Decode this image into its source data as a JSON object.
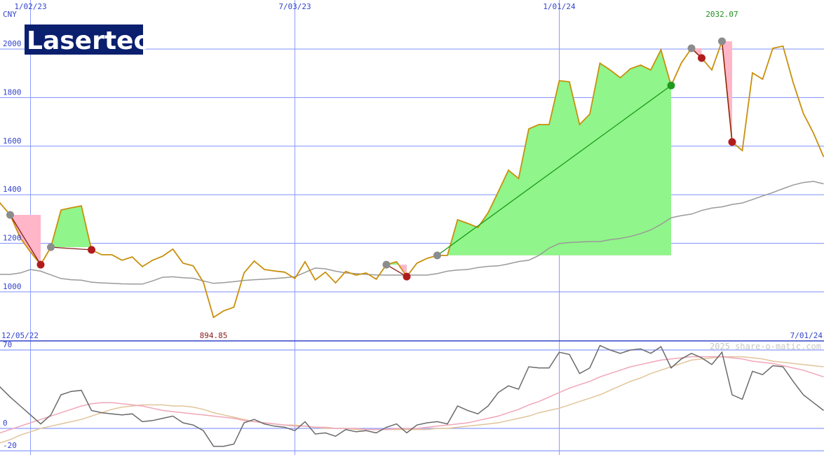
{
  "chart_data": [
    {
      "type": "line",
      "logo": "Lasertec",
      "currency": "CNY",
      "categories": [
        "12/05/22",
        null,
        null,
        null,
        "1/02/23",
        null,
        null,
        null,
        null,
        null,
        null,
        null,
        null,
        null,
        null,
        null,
        null,
        null,
        null,
        null,
        null,
        null,
        null,
        null,
        null,
        null,
        null,
        null,
        null,
        null,
        "7/03/23",
        null,
        null,
        null,
        null,
        null,
        null,
        null,
        null,
        null,
        null,
        null,
        null,
        null,
        null,
        null,
        null,
        null,
        null,
        null,
        null,
        null,
        null,
        null,
        null,
        null,
        "1/01/24",
        null,
        null,
        null,
        null,
        null,
        null,
        null,
        null,
        null,
        null,
        null,
        null,
        null,
        null,
        null,
        null,
        null,
        null,
        null,
        null,
        null,
        null,
        null,
        null,
        null,
        "7/01/24"
      ],
      "series": [
        {
          "color": "#c8900c",
          "values": [
            1410,
            1366,
            1317,
            1222,
            1164,
            1112,
            1184,
            1337,
            1346,
            1354,
            1173,
            1153,
            1153,
            1130,
            1144,
            1104,
            1130,
            1147,
            1176,
            1118,
            1107,
            1040,
            894.85,
            922,
            937,
            1078,
            1127,
            1092,
            1086,
            1081,
            1055,
            1124,
            1049,
            1081,
            1037,
            1084,
            1069,
            1078,
            1052,
            1112,
            1124,
            1063,
            1118,
            1138,
            1150,
            1150,
            1297,
            1282,
            1265,
            1326,
            1412,
            1501,
            1467,
            1671,
            1689,
            1689,
            1870,
            1865,
            1689,
            1732,
            1942,
            1914,
            1882,
            1919,
            1934,
            1914,
            1997,
            1850,
            1942,
            2003,
            1963,
            1914,
            2032.07,
            1617,
            1582,
            1902,
            1876,
            2003,
            2012,
            1862,
            1735,
            1654,
            1556
          ]
        },
        {
          "color": "#9a9a9a",
          "values": [
            1075,
            1072,
            1072,
            1078,
            1092,
            1085,
            1070,
            1055,
            1050,
            1048,
            1040,
            1037,
            1035,
            1033,
            1032,
            1032,
            1045,
            1060,
            1062,
            1058,
            1056,
            1045,
            1035,
            1038,
            1042,
            1047,
            1050,
            1052,
            1055,
            1058,
            1062,
            1080,
            1098,
            1095,
            1085,
            1078,
            1075,
            1072,
            1070,
            1069,
            1069,
            1069,
            1069,
            1069,
            1075,
            1085,
            1090,
            1092,
            1100,
            1105,
            1107,
            1115,
            1125,
            1130,
            1150,
            1180,
            1199,
            1203,
            1205,
            1207,
            1207,
            1215,
            1220,
            1228,
            1240,
            1255,
            1278,
            1305,
            1314,
            1320,
            1335,
            1345,
            1350,
            1360,
            1366,
            1380,
            1395,
            1409,
            1425,
            1440,
            1450,
            1455,
            1445
          ]
        }
      ],
      "high": 2032.07,
      "low": 894.85,
      "trades": [
        {
          "entry": 2,
          "exit": 5
        },
        {
          "entry": 6,
          "exit": 10
        },
        {
          "entry": 39,
          "exit": 41
        },
        {
          "entry": 44,
          "exit": 67
        },
        {
          "entry": 69,
          "exit": 70
        },
        {
          "entry": 72,
          "exit": 73
        }
      ],
      "ylim": [
        798,
        2202
      ],
      "yticks": [
        1000,
        1200,
        1400,
        1600,
        1800,
        2000
      ],
      "grid": true
    },
    {
      "type": "line",
      "watermark": "2025 share-o-matic.com",
      "series": [
        {
          "color": "#6a6a6a",
          "values": [
            45,
            37,
            28,
            20,
            12,
            4,
            12,
            30,
            33,
            34,
            16,
            14,
            13,
            12,
            13,
            6,
            7,
            9,
            11,
            5,
            3,
            -2,
            -16,
            -16,
            -14,
            5,
            8,
            4,
            2,
            1,
            -2,
            6,
            -5,
            -4,
            -7,
            -1,
            -3,
            -2,
            -4,
            1,
            4,
            -4,
            3,
            5,
            6,
            4,
            20,
            16,
            13,
            20,
            32,
            38,
            35,
            55,
            54,
            54,
            68,
            66,
            49,
            54,
            74,
            70,
            67,
            70,
            71,
            67,
            73,
            54,
            62,
            67,
            63,
            57,
            68,
            30,
            26,
            51,
            48,
            56,
            55,
            42,
            30,
            23,
            16
          ]
        },
        {
          "color": "#f0a6b8",
          "values": [
            -6,
            -4,
            -1,
            2,
            5,
            8,
            11,
            14,
            17,
            20,
            22,
            23,
            23,
            22,
            21,
            20,
            18,
            16,
            15,
            14,
            13,
            12,
            11,
            10,
            9,
            7,
            6,
            5,
            4,
            3,
            2,
            2,
            1,
            1,
            0,
            0,
            0,
            -1,
            -1,
            -1,
            0,
            0,
            0,
            1,
            2,
            3,
            4,
            5,
            7,
            9,
            11,
            14,
            17,
            21,
            24,
            28,
            32,
            36,
            39,
            42,
            46,
            49,
            52,
            55,
            57,
            59,
            61,
            62,
            63,
            64,
            64,
            64,
            64,
            63,
            62,
            60,
            59,
            58,
            56,
            54,
            52,
            49,
            46
          ]
        },
        {
          "color": "#e2c49a",
          "values": [
            -16,
            -13,
            -10,
            -6,
            -3,
            0,
            2,
            4,
            6,
            8,
            11,
            14,
            17,
            19,
            20,
            21,
            21,
            21,
            20,
            20,
            19,
            17,
            14,
            12,
            10,
            8,
            6,
            5,
            4,
            3,
            3,
            2,
            1,
            0,
            0,
            0,
            -1,
            -1,
            -1,
            -1,
            -1,
            -1,
            -1,
            -1,
            0,
            0,
            1,
            2,
            3,
            4,
            5,
            7,
            9,
            11,
            14,
            16,
            18,
            21,
            24,
            27,
            30,
            34,
            38,
            42,
            45,
            49,
            52,
            55,
            58,
            61,
            62,
            63,
            64,
            64,
            64,
            63,
            62,
            60,
            59,
            58,
            57,
            56,
            55
          ]
        }
      ],
      "ylim": [
        -23.75,
        78.1
      ],
      "yticks": [
        -20,
        0,
        70
      ],
      "grid": true
    }
  ]
}
